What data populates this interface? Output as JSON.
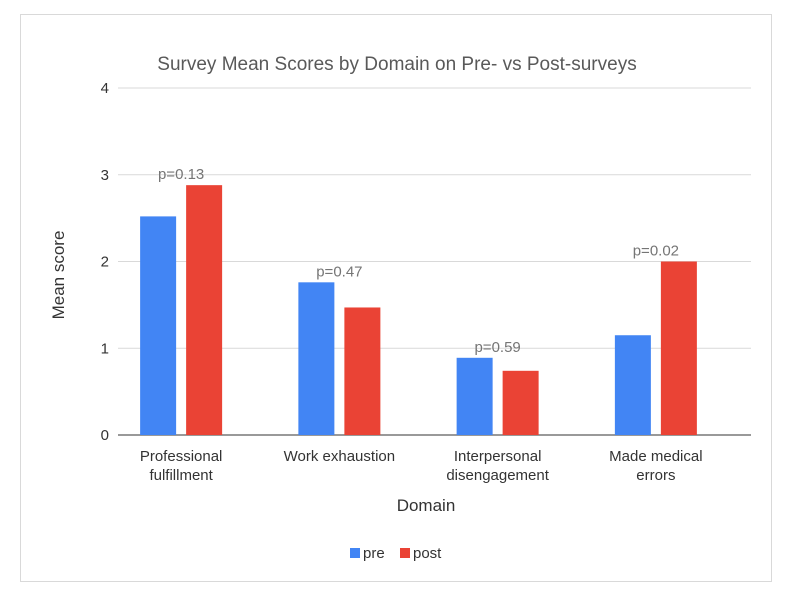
{
  "chart_data": {
    "type": "bar",
    "title": "Survey Mean Scores by Domain on Pre- vs Post-surveys",
    "xlabel": "Domain",
    "ylabel": "Mean score",
    "ylim": [
      0,
      4
    ],
    "yticks": [
      "0",
      "1",
      "2",
      "3",
      "4"
    ],
    "grid": true,
    "legend_position": "bottom",
    "categories": [
      [
        "Professional",
        "fulfillment"
      ],
      [
        "Work exhaustion"
      ],
      [
        "Interpersonal",
        "disengagement"
      ],
      [
        "Made medical",
        "errors"
      ]
    ],
    "series": [
      {
        "name": "pre",
        "color": "#4285f4",
        "values": [
          2.52,
          1.76,
          0.89,
          1.15
        ]
      },
      {
        "name": "post",
        "color": "#ea4335",
        "values": [
          2.88,
          1.47,
          0.74,
          2.0
        ]
      }
    ],
    "annotations": [
      "p=0.13",
      "p=0.47",
      "p=0.59",
      "p=0.02"
    ]
  }
}
